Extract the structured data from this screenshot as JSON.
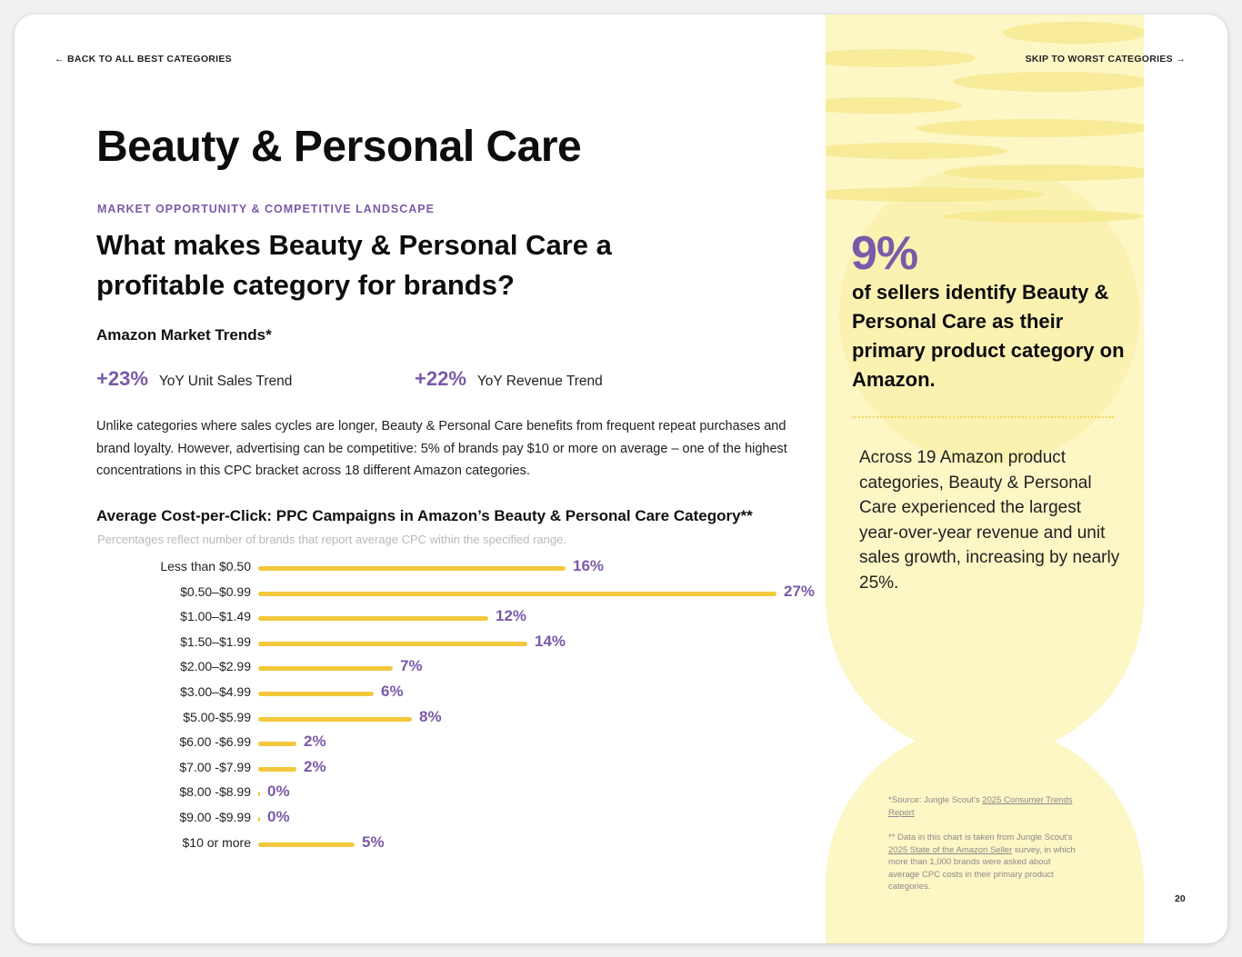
{
  "nav": {
    "back_label": "← BACK TO ALL BEST CATEGORIES",
    "skip_label": "SKIP TO WORST CATEGORIES →"
  },
  "title": "Beauty & Personal Care",
  "eyebrow": "MARKET OPPORTUNITY & COMPETITIVE LANDSCAPE",
  "question": "What makes Beauty & Personal Care a profitable category for brands?",
  "trends": {
    "heading": "Amazon Market Trends*",
    "unit_sales": {
      "value": "+23%",
      "label": "YoY Unit Sales Trend"
    },
    "revenue": {
      "value": "+22%",
      "label": "YoY Revenue Trend"
    }
  },
  "body_text": "Unlike categories where sales cycles are longer, Beauty & Personal Care benefits from frequent repeat purchases and brand loyalty. However, advertising can be competitive: 5% of brands pay $10 or more on average – one of the highest concentrations in this CPC bracket across 18 different Amazon categories.",
  "sidebar": {
    "stat_value": "9%",
    "stat_text": "of sellers identify Beauty & Personal Care as their primary product category on Amazon.",
    "detail_text": "Across 19 Amazon product categories, Beauty & Personal Care experienced the largest year-over-year revenue and unit sales growth, increasing by nearly 25%.",
    "footnote_1_prefix": "*Source: Jungle Scout's ",
    "footnote_1_link": "2025 Consumer Trends Report",
    "footnote_2_prefix": "** Data in this chart is taken from Jungle Scout's ",
    "footnote_2_link": "2025 State of the Amazon Seller",
    "footnote_2_suffix": " survey, in which more than 1,000 brands were asked about average CPC costs in their primary product categories."
  },
  "page_number": "20",
  "colors": {
    "accent_purple": "#7a5aa8",
    "bar_yellow": "#f2c83d",
    "panel_yellow": "#fdf6c5"
  },
  "chart_data": {
    "type": "bar",
    "orientation": "horizontal",
    "title": "Average Cost-per-Click: PPC Campaigns in Amazon’s Beauty & Personal Care Category**",
    "subtitle": "Percentages reflect number of brands that report average CPC within the specified range.",
    "categories": [
      "Less than $0.50",
      "$0.50–$0.99",
      "$1.00–$1.49",
      "$1.50–$1.99",
      "$2.00–$2.99",
      "$3.00–$4.99",
      "$5.00-$5.99",
      "$6.00 -$6.99",
      "$7.00 -$7.99",
      "$8.00 -$8.99",
      "$9.00 -$9.99",
      "$10 or more"
    ],
    "values": [
      16,
      27,
      12,
      14,
      7,
      6,
      8,
      2,
      2,
      0,
      0,
      5
    ],
    "value_labels": [
      "16%",
      "27%",
      "12%",
      "14%",
      "7%",
      "6%",
      "8%",
      "2%",
      "2%",
      "0%",
      "0%",
      "5%"
    ],
    "unit": "%",
    "xlim": [
      0,
      27
    ],
    "grid": false,
    "legend": "none"
  }
}
